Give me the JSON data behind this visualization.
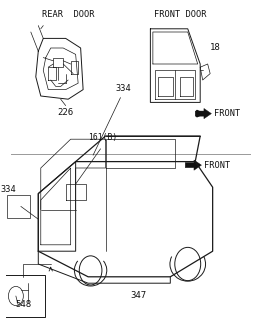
{
  "bg_color": "#ffffff",
  "line_color": "#1a1a1a",
  "text_color": "#111111",
  "title_top_left": "REAR  DOOR",
  "title_top_right": "FRONT DOOR",
  "label_226": "226",
  "label_18": "18",
  "label_front_top": "FRONT",
  "label_334_top": "334",
  "label_161B": "161(B)",
  "label_334_left": "334",
  "label_548": "548",
  "label_347": "347",
  "label_front_bottom": "FRONT",
  "fig_width": 2.55,
  "fig_height": 3.2,
  "dpi": 100
}
